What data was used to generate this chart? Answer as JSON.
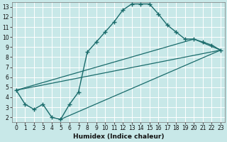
{
  "xlabel": "Humidex (Indice chaleur)",
  "xlim": [
    -0.5,
    23.5
  ],
  "ylim": [
    1.5,
    13.5
  ],
  "xticks": [
    0,
    1,
    2,
    3,
    4,
    5,
    6,
    7,
    8,
    9,
    10,
    11,
    12,
    13,
    14,
    15,
    16,
    17,
    18,
    19,
    20,
    21,
    22,
    23
  ],
  "yticks": [
    2,
    3,
    4,
    5,
    6,
    7,
    8,
    9,
    10,
    11,
    12,
    13
  ],
  "bg_color": "#c8e8e8",
  "grid_color": "#ffffff",
  "line_color": "#1a6b6b",
  "curve_x": [
    0,
    1,
    2,
    3,
    4,
    5,
    6,
    7,
    8,
    9,
    10,
    11,
    12,
    13,
    14,
    15,
    16,
    17,
    18,
    19,
    20,
    21,
    22,
    23
  ],
  "curve_y": [
    4.7,
    3.3,
    2.8,
    3.3,
    2.0,
    1.8,
    3.3,
    4.5,
    8.5,
    9.5,
    10.5,
    11.5,
    12.7,
    13.3,
    13.3,
    13.3,
    12.3,
    11.2,
    10.5,
    9.8,
    9.8,
    9.5,
    9.2,
    8.7
  ],
  "line1_x": [
    0,
    23
  ],
  "line1_y": [
    4.7,
    8.7
  ],
  "line2_x": [
    0,
    20,
    23
  ],
  "line2_y": [
    4.7,
    9.8,
    8.7
  ],
  "line3_x": [
    5,
    23
  ],
  "line3_y": [
    1.8,
    8.7
  ]
}
